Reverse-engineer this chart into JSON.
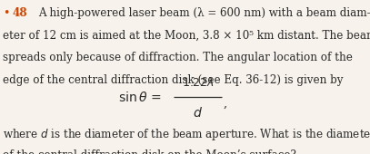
{
  "bullet_color": "#cc4400",
  "text_color": "#2a2a2a",
  "background_color": "#f7f3ec",
  "fontsize_main": 8.6,
  "line1": "A high-powered laser beam (λ = 600 nm) with a beam diam-",
  "line2": "eter of 12 cm is aimed at the Moon, 3.8 × 10⁵ km distant. The beam",
  "line3": "spreads only because of diffraction. The angular location of the",
  "line4": "edge of the central diffraction disk (see Eq. 36-12) is given by",
  "line5a": "where ",
  "line5b": " is the diameter of the beam aperture. What is the diameter",
  "line6": "of the central diffraction disk on the Moon’s surface?"
}
